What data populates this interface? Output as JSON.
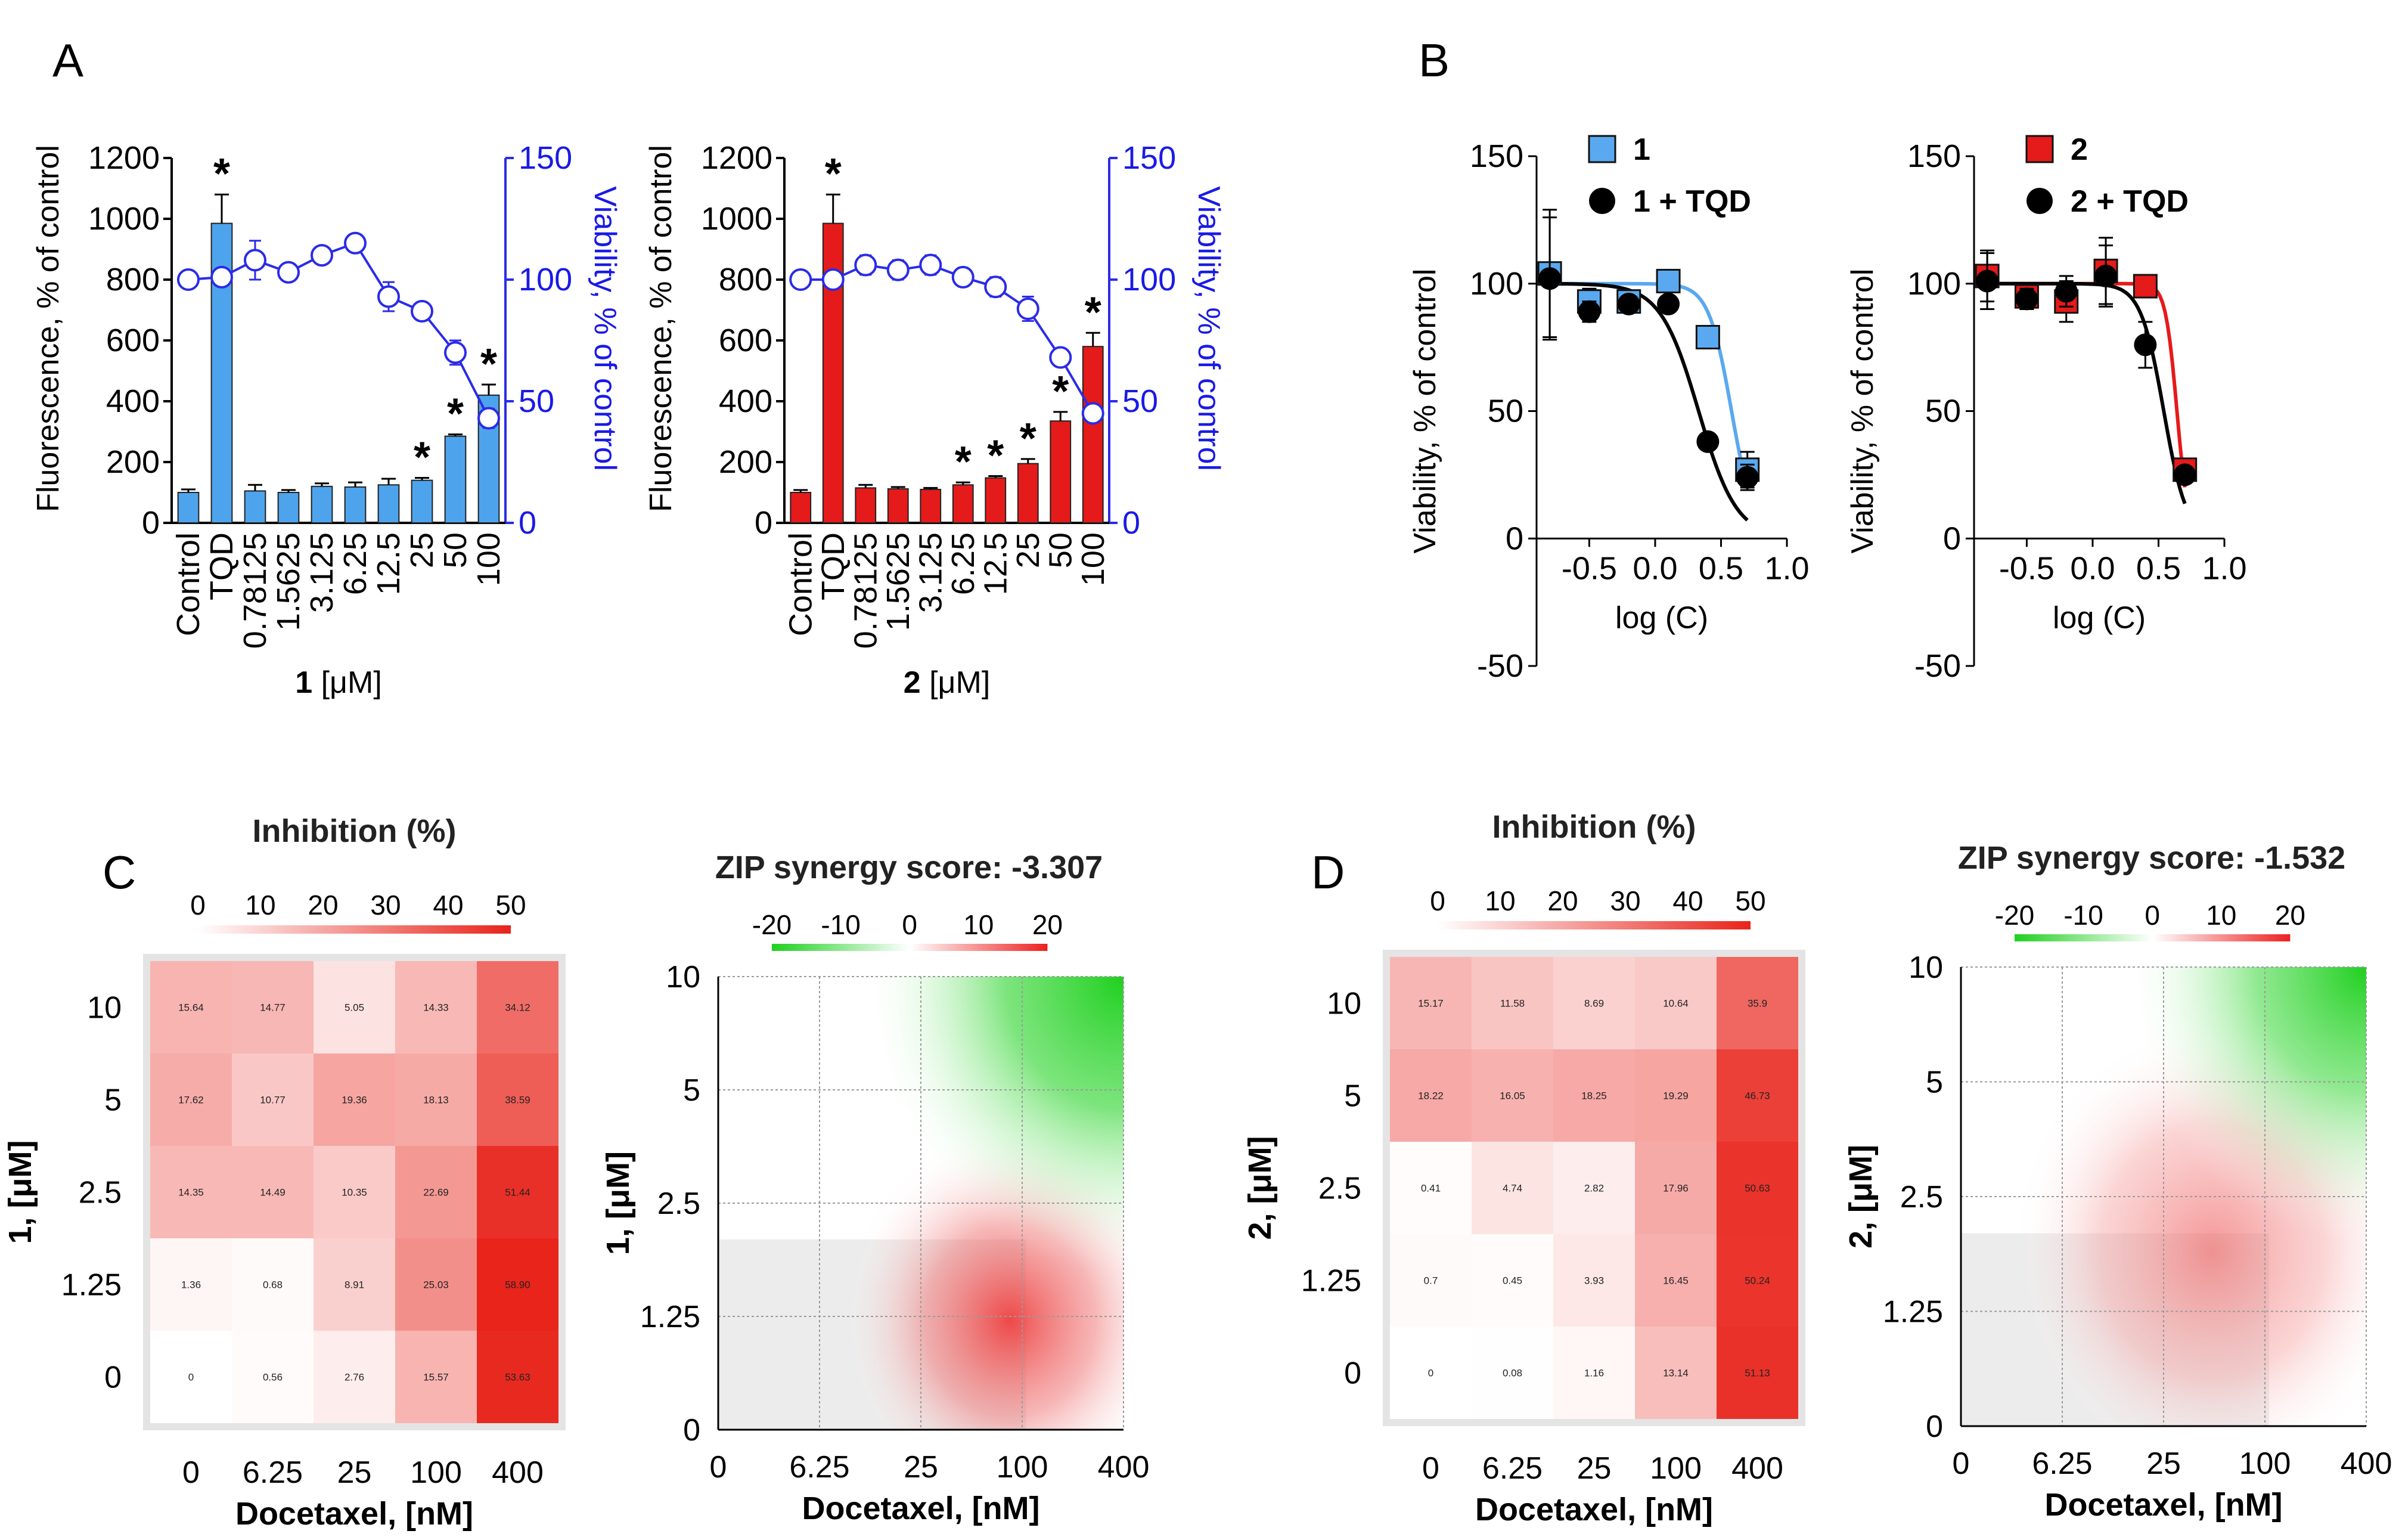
{
  "panel_letters": {
    "A": "A",
    "B": "B",
    "C": "C",
    "D": "D"
  },
  "colors": {
    "blue_bar": "#4ea4ec",
    "red_bar": "#e51a1a",
    "viability_line": "#2b2be8",
    "compound1_fit": "#5aa9f0",
    "combo_fit": "#000000",
    "compound2_fit": "#e51a1a",
    "heat_low": "#ffffff",
    "heat_high": "#e8241b",
    "synergy_neg": "#1fd01f",
    "synergy_pos": "#ee2020"
  },
  "chart_data": [
    {
      "id": "A1",
      "type": "bar",
      "categories": [
        "Control",
        "TQD",
        "0.78125",
        "1.5625",
        "3.125",
        "6.25",
        "12.5",
        "25",
        "50",
        "100"
      ],
      "values": [
        100,
        985,
        105,
        100,
        120,
        118,
        125,
        140,
        285,
        420
      ],
      "errors": [
        10,
        95,
        20,
        8,
        10,
        15,
        20,
        8,
        6,
        35
      ],
      "significant": [
        false,
        true,
        false,
        false,
        false,
        false,
        false,
        true,
        true,
        true
      ],
      "star": "*",
      "ylabel": "Fluorescence, % of control",
      "ylim": [
        0,
        1200
      ],
      "yticks": [
        "0",
        "200",
        "400",
        "600",
        "800",
        "1000",
        "1200"
      ],
      "xlabel_bold": "1",
      "xlabel_rest": " [μM]",
      "y2label": "Viability, % of control",
      "y2lim": [
        0,
        150
      ],
      "y2ticks": [
        "0",
        "50",
        "100",
        "150"
      ],
      "viability": [
        100,
        101,
        108,
        103,
        110,
        115,
        93,
        87,
        70,
        43
      ],
      "viability_err": [
        0,
        2,
        8,
        2,
        2,
        2,
        6,
        3,
        5,
        4
      ]
    },
    {
      "id": "A2",
      "type": "bar",
      "categories": [
        "Control",
        "TQD",
        "0.78125",
        "1.5625",
        "3.125",
        "6.25",
        "12.5",
        "25",
        "50",
        "100"
      ],
      "values": [
        100,
        985,
        115,
        112,
        110,
        125,
        148,
        195,
        335,
        580
      ],
      "errors": [
        8,
        95,
        10,
        6,
        5,
        8,
        6,
        15,
        30,
        45
      ],
      "significant": [
        false,
        true,
        false,
        false,
        false,
        true,
        true,
        true,
        true,
        true
      ],
      "star": "*",
      "ylabel": "Fluorescence, % of control",
      "ylim": [
        0,
        1200
      ],
      "yticks": [
        "0",
        "200",
        "400",
        "600",
        "800",
        "1000",
        "1200"
      ],
      "xlabel_bold": "2",
      "xlabel_rest": " [μM]",
      "y2label": "Viability, % of control",
      "y2lim": [
        0,
        150
      ],
      "y2ticks": [
        "0",
        "50",
        "100",
        "150"
      ],
      "viability": [
        100,
        100,
        106,
        104,
        106,
        101,
        97,
        88,
        68,
        45
      ],
      "viability_err": [
        0,
        2,
        4,
        4,
        4,
        2,
        4,
        5,
        3,
        3
      ]
    },
    {
      "id": "B1",
      "type": "scatter",
      "xlabel": "log (C)",
      "ylabel": "Viability, % of control",
      "xlim": [
        -0.9,
        1.0
      ],
      "ylim": [
        -50,
        150
      ],
      "xticks": [
        "-0.5",
        "0.0",
        "0.5",
        "1.0"
      ],
      "yticks": [
        "-50",
        "0",
        "50",
        "100",
        "150"
      ],
      "series": [
        {
          "name": "1",
          "x": [
            -0.8,
            -0.5,
            -0.2,
            0.1,
            0.4,
            0.7
          ],
          "y": [
            104,
            93,
            93,
            101,
            79,
            27
          ],
          "err": [
            25,
            5,
            4,
            4,
            3,
            7
          ]
        },
        {
          "name": "1 + TQD",
          "x": [
            -0.8,
            -0.5,
            -0.2,
            0.1,
            0.4,
            0.7
          ],
          "y": [
            102,
            89,
            92,
            92,
            38,
            24
          ],
          "err": [
            24,
            4,
            3,
            3,
            3,
            5
          ]
        }
      ],
      "fit_ic50": [
        0.58,
        0.33
      ],
      "fit_hill": [
        5,
        3
      ]
    },
    {
      "id": "B2",
      "type": "scatter",
      "xlabel": "log (C)",
      "ylabel": "Viability, % of control",
      "xlim": [
        -0.9,
        1.0
      ],
      "ylim": [
        -50,
        150
      ],
      "xticks": [
        "-0.5",
        "0.0",
        "0.5",
        "1.0"
      ],
      "yticks": [
        "-50",
        "0",
        "50",
        "100",
        "150"
      ],
      "series": [
        {
          "name": "2",
          "x": [
            -0.8,
            -0.5,
            -0.2,
            0.1,
            0.4,
            0.7
          ],
          "y": [
            103,
            95,
            93,
            105,
            99,
            27
          ],
          "err": [
            10,
            5,
            8,
            13,
            3,
            4
          ]
        },
        {
          "name": "2 + TQD",
          "x": [
            -0.8,
            -0.5,
            -0.2,
            0.1,
            0.4,
            0.7
          ],
          "y": [
            101,
            94,
            97,
            103,
            76,
            25
          ],
          "err": [
            11,
            4,
            6,
            12,
            9,
            3
          ]
        }
      ],
      "fit_ic50": [
        0.64,
        0.54
      ],
      "fit_hill": [
        10,
        5
      ]
    },
    {
      "id": "C_heat",
      "type": "heatmap",
      "title": "Inhibition  (%)",
      "scale_ticks": [
        "0",
        "10",
        "20",
        "30",
        "40",
        "50"
      ],
      "xlabel": "Docetaxel, [nM]",
      "ylabel": "1, [μM]",
      "xcats": [
        "0",
        "6.25",
        "25",
        "100",
        "400"
      ],
      "ycats": [
        "10",
        "5",
        "2.5",
        "1.25",
        "0"
      ],
      "values": [
        [
          "15.64",
          "14.77",
          "5.05",
          "14.33",
          "34.12"
        ],
        [
          "17.62",
          "10.77",
          "19.36",
          "18.13",
          "38.59"
        ],
        [
          "14.35",
          "14.49",
          "10.35",
          "22.69",
          "51.44"
        ],
        [
          "1.36",
          "0.68",
          "8.91",
          "25.03",
          "58.90"
        ],
        [
          "0",
          "0.56",
          "2.76",
          "15.57",
          "53.63"
        ]
      ]
    },
    {
      "id": "C_zip",
      "type": "heatmap",
      "title": "ZIP synergy score: -3.307",
      "scale_ticks": [
        "-20",
        "-10",
        "0",
        "10",
        "20"
      ],
      "xlabel": "Docetaxel, [nM]",
      "ylabel": "1, [μM]",
      "xticks": [
        "0",
        "6.25",
        "25",
        "100",
        "400"
      ],
      "yticks": [
        "0",
        "1.25",
        "2.5",
        "5",
        "10"
      ]
    },
    {
      "id": "D_heat",
      "type": "heatmap",
      "title": "Inhibition  (%)",
      "scale_ticks": [
        "0",
        "10",
        "20",
        "30",
        "40",
        "50"
      ],
      "xlabel": "Docetaxel, [nM]",
      "ylabel": "2, [μM]",
      "xcats": [
        "0",
        "6.25",
        "25",
        "100",
        "400"
      ],
      "ycats": [
        "10",
        "5",
        "2.5",
        "1.25",
        "0"
      ],
      "values": [
        [
          "15.17",
          "11.58",
          "8.69",
          "10.64",
          "35.9"
        ],
        [
          "18.22",
          "16.05",
          "18.25",
          "19.29",
          "46.73"
        ],
        [
          "0.41",
          "4.74",
          "2.82",
          "17.96",
          "50.63"
        ],
        [
          "0.7",
          "0.45",
          "3.93",
          "16.45",
          "50.24"
        ],
        [
          "0",
          "0.08",
          "1.16",
          "13.14",
          "51.13"
        ]
      ]
    },
    {
      "id": "D_zip",
      "type": "heatmap",
      "title": "ZIP synergy score: -1.532",
      "scale_ticks": [
        "-20",
        "-10",
        "0",
        "10",
        "20"
      ],
      "xlabel": "Docetaxel, [nM]",
      "ylabel": "2, [μM]",
      "xticks": [
        "0",
        "6.25",
        "25",
        "100",
        "400"
      ],
      "yticks": [
        "0",
        "1.25",
        "2.5",
        "5",
        "10"
      ]
    }
  ]
}
